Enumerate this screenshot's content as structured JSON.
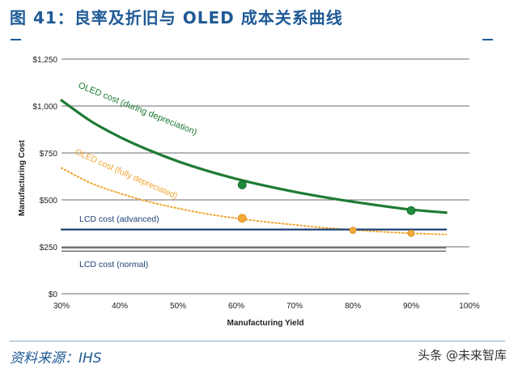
{
  "figure": {
    "title": "图 41：良率及折旧与 OLED 成本关系曲线",
    "source": "资料来源：IHS",
    "watermark": "头条 @未来智库"
  },
  "chart_data": {
    "type": "line",
    "xlabel": "Manufacturing Yield",
    "ylabel": "Manufacturing Cost",
    "xlim": [
      30,
      100
    ],
    "ylim": [
      0,
      1250
    ],
    "x_ticks": [
      30,
      40,
      50,
      60,
      70,
      80,
      90,
      100
    ],
    "x_tick_labels": [
      "30%",
      "40%",
      "50%",
      "60%",
      "70%",
      "80%",
      "90%",
      "100%"
    ],
    "y_ticks": [
      0,
      250,
      500,
      750,
      1000,
      1250
    ],
    "y_tick_labels": [
      "$0",
      "$250",
      "$500",
      "$750",
      "$1,000",
      "$1,250"
    ],
    "grid": "horizontal",
    "series": [
      {
        "name": "OLED cost (during depreciation)",
        "color": "#1e7b34",
        "style": "solid",
        "x": [
          30,
          35,
          40,
          45,
          50,
          55,
          60,
          65,
          70,
          75,
          80,
          85,
          90,
          96
        ],
        "y": [
          1030,
          920,
          835,
          765,
          705,
          655,
          612,
          575,
          543,
          515,
          490,
          468,
          448,
          432
        ],
        "markers": [
          {
            "x": 61,
            "y": 580
          },
          {
            "x": 90,
            "y": 443
          }
        ]
      },
      {
        "name": "OLED cost (fully depreciated)",
        "color": "#f0a530",
        "style": "dotted",
        "x": [
          30,
          35,
          40,
          45,
          50,
          55,
          60,
          65,
          70,
          75,
          80,
          85,
          90,
          96
        ],
        "y": [
          670,
          590,
          535,
          490,
          455,
          425,
          402,
          383,
          367,
          352,
          340,
          330,
          322,
          316
        ],
        "markers": [
          {
            "x": 61,
            "y": 402
          },
          {
            "x": 80,
            "y": 338
          },
          {
            "x": 90,
            "y": 322
          }
        ]
      },
      {
        "name": "LCD cost (advanced)",
        "color": "#1b3f73",
        "style": "solid",
        "x": [
          30,
          96
        ],
        "y": [
          342,
          342
        ]
      },
      {
        "name": "LCD cost (normal)",
        "color": "#2a2a2a",
        "style": "double",
        "x": [
          30,
          96
        ],
        "y": [
          236,
          236
        ]
      }
    ],
    "annotations": [
      {
        "text": "OLED cost (during depreciation)",
        "series": 0
      },
      {
        "text": "OLED cost (fully depreciated)",
        "series": 1
      },
      {
        "text": "LCD cost (advanced)",
        "series": 2
      },
      {
        "text": "LCD cost (normal)",
        "series": 3
      }
    ]
  }
}
